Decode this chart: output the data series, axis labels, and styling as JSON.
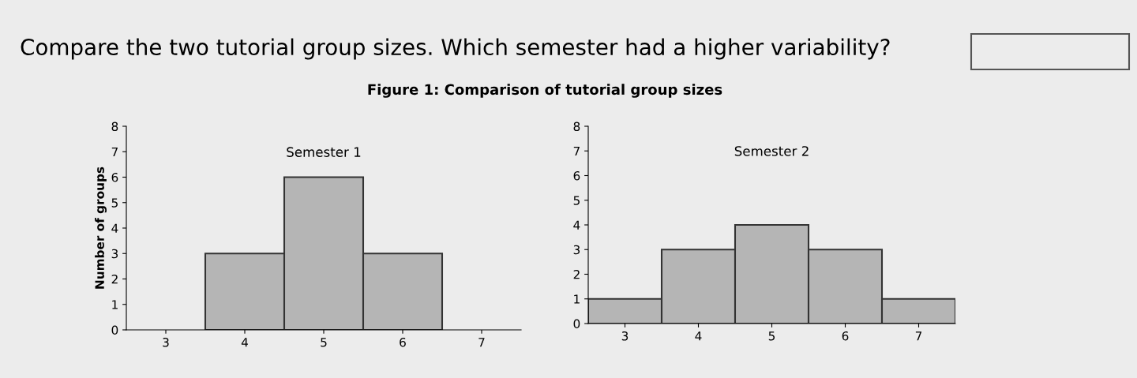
{
  "chart_data": [
    {
      "type": "histogram",
      "title": "Semester 1",
      "ylabel": "Number of groups",
      "annotations": [
        "Compare the two tutorial group sizes. Which semester had a higher variability?",
        "Figure 1: Comparison of tutorial group sizes"
      ],
      "bins": [
        3.5,
        4.5,
        5.5,
        6.5
      ],
      "values": [
        3,
        6,
        3
      ],
      "color": "#b5b5b5",
      "xlim": [
        2.5,
        7.5
      ],
      "xticks": [
        3,
        4,
        5,
        6,
        7
      ],
      "ylim": [
        0,
        8
      ],
      "yticks": [
        0,
        1,
        2,
        3,
        4,
        5,
        6,
        7,
        8
      ],
      "grid": false
    },
    {
      "type": "histogram",
      "title": "Semester 2",
      "bins": [
        2.5,
        3.5,
        4.5,
        5.5,
        6.5,
        7.5
      ],
      "values": [
        1,
        3,
        4,
        3,
        1
      ],
      "color": "#b5b5b5",
      "xlim": [
        2.5,
        7.5
      ],
      "xticks": [
        3,
        4,
        5,
        6,
        7
      ],
      "ylim": [
        0,
        8
      ],
      "yticks": [
        0,
        1,
        2,
        3,
        4,
        5,
        6,
        7,
        8
      ],
      "grid": false
    }
  ]
}
